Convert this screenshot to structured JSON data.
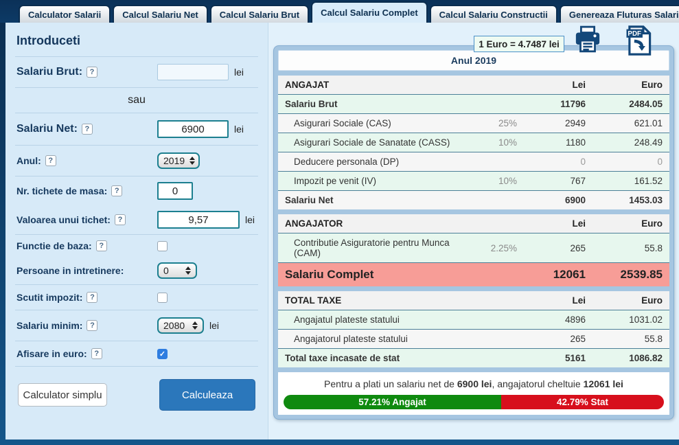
{
  "tabs": [
    {
      "label": "Calculator Salarii"
    },
    {
      "label": "Calcul Salariu Net"
    },
    {
      "label": "Calcul Salariu Brut"
    },
    {
      "label": "Calcul Salariu Complet"
    },
    {
      "label": "Calcul Salariu Constructii"
    },
    {
      "label": "Genereaza Fluturas Salariu"
    }
  ],
  "exchange_rate": "1 Euro = 4.7487 lei",
  "icons": {
    "printer": "printer-icon",
    "pdf": "pdf-download-icon",
    "pdf_label": "PDF"
  },
  "form": {
    "title": "Introduceti",
    "help_symbol": "?",
    "brut": {
      "label": "Salariu Brut:",
      "value": "",
      "unit": "lei"
    },
    "or_text": "sau",
    "net": {
      "label": "Salariu Net:",
      "value": "6900",
      "unit": "lei"
    },
    "anul": {
      "label": "Anul:",
      "value": "2019"
    },
    "tichete_nr": {
      "label": "Nr. tichete de masa:",
      "value": "0"
    },
    "tichet_valoare": {
      "label": "Valoarea unui tichet:",
      "value": "9,57",
      "unit": "lei"
    },
    "functie_baza": {
      "label": "Functie de baza:",
      "checked": false
    },
    "persoane": {
      "label": "Persoane in intretinere:",
      "value": "0"
    },
    "scutit": {
      "label": "Scutit impozit:",
      "checked": false
    },
    "salariu_minim": {
      "label": "Salariu minim:",
      "value": "2080",
      "unit": "lei"
    },
    "afisare_euro": {
      "label": "Afisare in euro:",
      "checked": true
    },
    "buttons": {
      "simple": "Calculator simplu",
      "calculate": "Calculeaza"
    }
  },
  "result": {
    "year": "Anul 2019",
    "sections": [
      {
        "title": "ANGAJAT",
        "lei": "Lei",
        "euro": "Euro",
        "rows": [
          {
            "label": "Salariu Brut",
            "pct": "",
            "lei": "11796",
            "euro": "2484.05"
          },
          {
            "label": "Asigurari Sociale (CAS)",
            "pct": "25%",
            "lei": "2949",
            "euro": "621.01"
          },
          {
            "label": "Asigurari Sociale de Sanatate (CASS)",
            "pct": "10%",
            "lei": "1180",
            "euro": "248.49"
          },
          {
            "label": "Deducere personala (DP)",
            "pct": "",
            "lei": "0",
            "euro": "0"
          },
          {
            "label": "Impozit pe venit (IV)",
            "pct": "10%",
            "lei": "767",
            "euro": "161.52"
          },
          {
            "label": "Salariu Net",
            "pct": "",
            "lei": "6900",
            "euro": "1453.03"
          }
        ]
      },
      {
        "title": "ANGAJATOR",
        "lei": "Lei",
        "euro": "Euro",
        "rows": [
          {
            "label": "Contributie Asiguratorie pentru Munca (CAM)",
            "pct": "2.25%",
            "lei": "265",
            "euro": "55.8"
          },
          {
            "label": "Salariu Complet",
            "pct": "",
            "lei": "12061",
            "euro": "2539.85"
          }
        ]
      },
      {
        "title": "TOTAL TAXE",
        "lei": "Lei",
        "euro": "Euro",
        "rows": [
          {
            "label": "Angajatul plateste statului",
            "pct": "",
            "lei": "4896",
            "euro": "1031.02"
          },
          {
            "label": "Angajatorul plateste statului",
            "pct": "",
            "lei": "265",
            "euro": "55.8"
          },
          {
            "label": "Total taxe incasate de stat",
            "pct": "",
            "lei": "5161",
            "euro": "1086.82"
          }
        ]
      }
    ],
    "footer": {
      "text_1": "Pentru a plati un salariu net de ",
      "bold_1": "6900 lei",
      "text_2": ", angajatorul cheltuie ",
      "bold_2": "12061 lei"
    },
    "bar": {
      "green_label": "57.21% Angajat",
      "red_label": "42.79% Stat",
      "green_pct": 57.21
    }
  },
  "colors": {
    "navy": "#0d3359",
    "accent_teal": "#1c7f8f",
    "row_green": "#e7f7ee",
    "row_salmon": "#f79d97",
    "bar_green": "#0f8a0f",
    "bar_red": "#d70f1c",
    "button_blue": "#2b77bb",
    "panel_frame": "#a6c6e1"
  }
}
